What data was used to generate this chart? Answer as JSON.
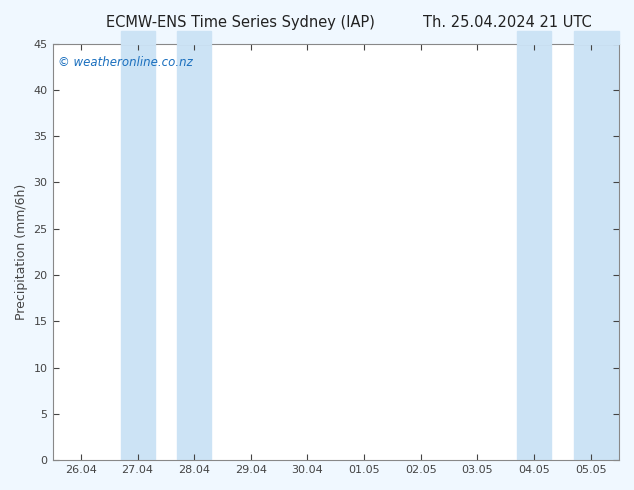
{
  "title_left": "ECMW-ENS Time Series Sydney (IAP)",
  "title_right": "Th. 25.04.2024 21 UTC",
  "ylabel": "Precipitation (mm/6h)",
  "watermark": "© weatheronline.co.nz",
  "ylim": [
    0,
    45
  ],
  "yticks": [
    0,
    5,
    10,
    15,
    20,
    25,
    30,
    35,
    40,
    45
  ],
  "xtick_labels": [
    "26.04",
    "27.04",
    "28.04",
    "29.04",
    "30.04",
    "01.05",
    "02.05",
    "03.05",
    "04.05",
    "05.05"
  ],
  "xtick_positions": [
    0,
    1,
    2,
    3,
    4,
    5,
    6,
    7,
    8,
    9
  ],
  "background_color": "#f0f8ff",
  "plot_bg_color": "#ffffff",
  "band_color": "#cce3f5",
  "shaded_bands": [
    [
      0.7,
      1.3
    ],
    [
      1.7,
      2.3
    ],
    [
      7.7,
      8.3
    ],
    [
      8.7,
      9.5
    ]
  ],
  "title_fontsize": 10.5,
  "watermark_color": "#1a6fbe",
  "axis_color": "#888888",
  "tick_color": "#444444",
  "ylabel_fontsize": 9,
  "tick_fontsize": 8
}
